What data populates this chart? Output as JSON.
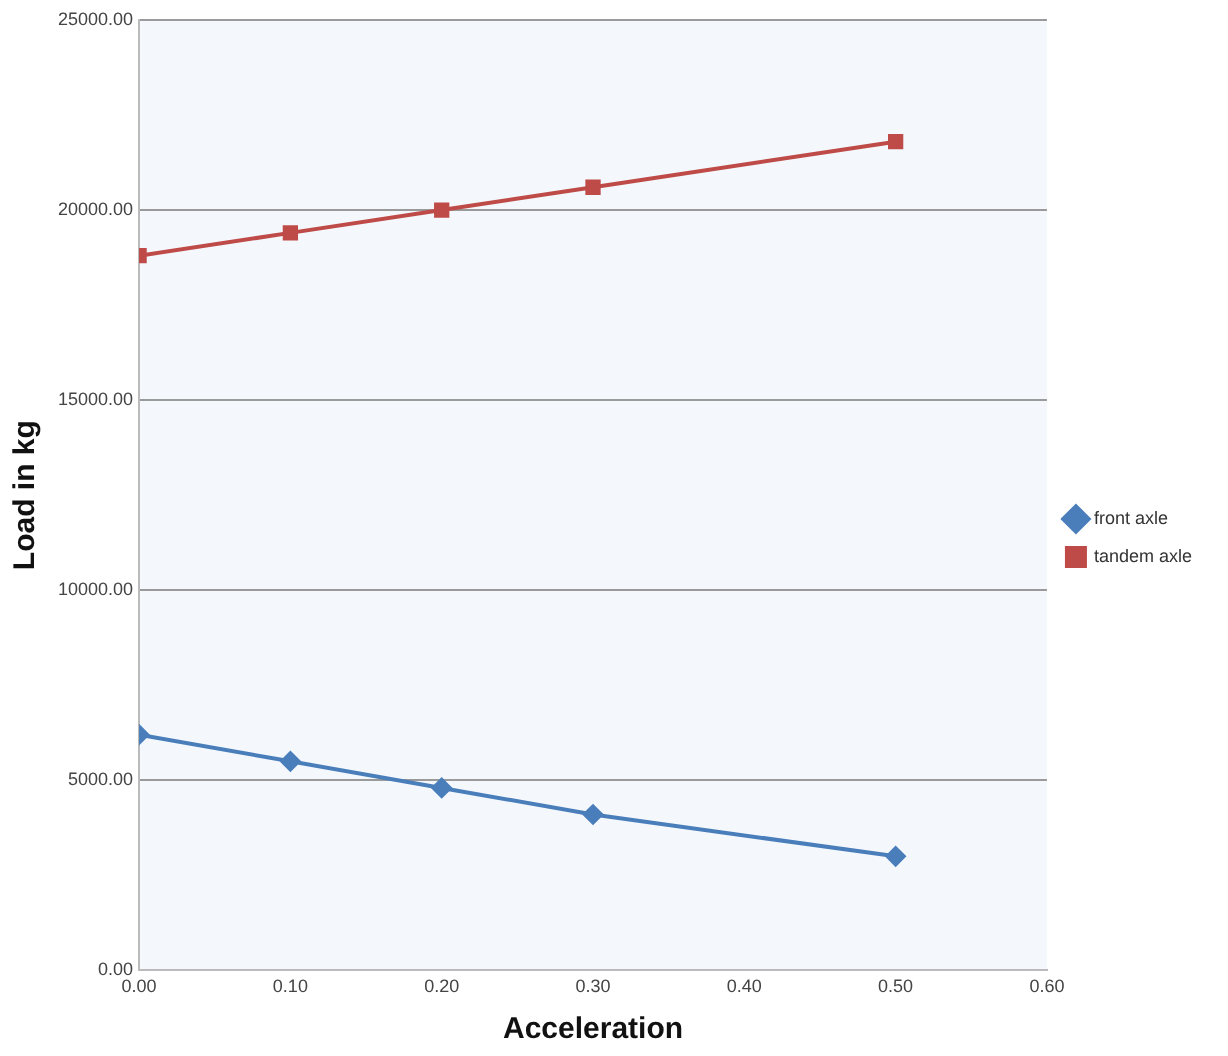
{
  "chart_data": {
    "type": "line",
    "xlabel": "Acceleration",
    "ylabel": "Load in kg",
    "x": [
      0,
      0.1,
      0.2,
      0.3,
      0.5
    ],
    "series": [
      {
        "name": "front axle",
        "color": "#4a7ebb",
        "marker": "diamond",
        "values": [
          6200,
          5500,
          4800,
          4100,
          3000
        ]
      },
      {
        "name": "tandem axle",
        "color": "#be4b48",
        "marker": "square",
        "values": [
          18800,
          19400,
          20000,
          20600,
          21800
        ]
      }
    ],
    "xlim": [
      0,
      0.6
    ],
    "xticks": [
      {
        "value": 0,
        "label": "0.00"
      },
      {
        "value": 0.1,
        "label": "0.10"
      },
      {
        "value": 0.2,
        "label": "0.20"
      },
      {
        "value": 0.3,
        "label": "0.30"
      },
      {
        "value": 0.4,
        "label": "0.40"
      },
      {
        "value": 0.5,
        "label": "0.50"
      },
      {
        "value": 0.6,
        "label": "0.60"
      }
    ],
    "ylim": [
      0,
      25000
    ],
    "yticks": [
      {
        "value": 0,
        "label": "0.00"
      },
      {
        "value": 5000,
        "label": "5000.00"
      },
      {
        "value": 10000,
        "label": "10000.00"
      },
      {
        "value": 15000,
        "label": "15000.00"
      },
      {
        "value": 20000,
        "label": "20000.00"
      },
      {
        "value": 25000,
        "label": "25000.00"
      }
    ],
    "grid": "y",
    "legend": "right",
    "line_style": "solid"
  }
}
